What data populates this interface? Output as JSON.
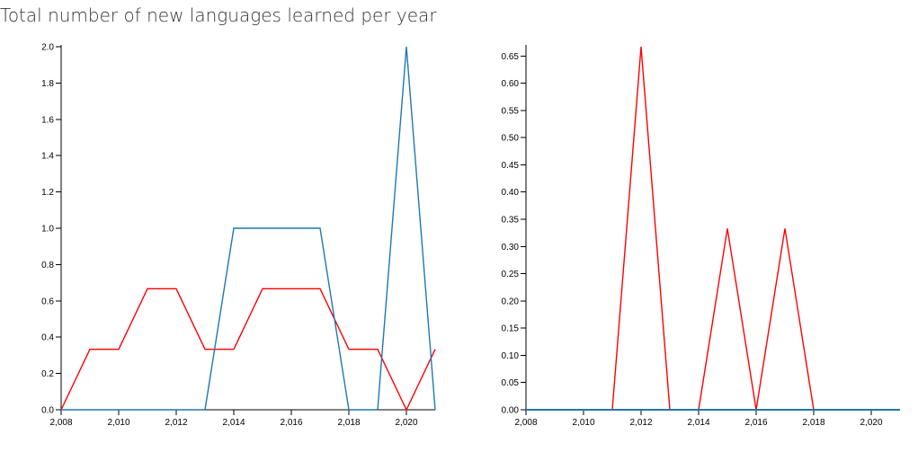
{
  "page": {
    "title": "Total number of new languages learned per year"
  },
  "colors": {
    "red_series": "#ff0000",
    "blue_series": "#1f77b4"
  },
  "chart_data": [
    {
      "type": "line",
      "title": "",
      "xlabel": "",
      "ylabel": "",
      "xlim": [
        2008,
        2021
      ],
      "ylim": [
        0,
        2.0
      ],
      "x_ticks": [
        "2,008",
        "2,010",
        "2,012",
        "2,014",
        "2,016",
        "2,018",
        "2,020"
      ],
      "y_ticks": [
        "0.0",
        "0.2",
        "0.4",
        "0.6",
        "0.8",
        "1.0",
        "1.2",
        "1.4",
        "1.6",
        "1.8",
        "2.0"
      ],
      "grid": false,
      "x": [
        2008,
        2009,
        2010,
        2011,
        2012,
        2013,
        2014,
        2015,
        2016,
        2017,
        2018,
        2019,
        2020,
        2021
      ],
      "series": [
        {
          "color": "#ff0000",
          "values": [
            0,
            0.333,
            0.333,
            0.667,
            0.667,
            0.333,
            0.333,
            0.667,
            0.667,
            0.667,
            0.333,
            0.333,
            0,
            0.333
          ]
        },
        {
          "color": "#1f77b4",
          "values": [
            0,
            0,
            0,
            0,
            0,
            0,
            1,
            1,
            1,
            1,
            0,
            0,
            2,
            0
          ]
        }
      ]
    },
    {
      "type": "line",
      "title": "",
      "xlabel": "",
      "ylabel": "",
      "xlim": [
        2008,
        2021
      ],
      "ylim": [
        0,
        0.667
      ],
      "x_ticks": [
        "2,008",
        "2,010",
        "2,012",
        "2,014",
        "2,016",
        "2,018",
        "2,020"
      ],
      "y_ticks": [
        "0.00",
        "0.05",
        "0.10",
        "0.15",
        "0.20",
        "0.25",
        "0.30",
        "0.35",
        "0.40",
        "0.45",
        "0.50",
        "0.55",
        "0.60",
        "0.65"
      ],
      "grid": false,
      "x": [
        2008,
        2009,
        2010,
        2011,
        2012,
        2013,
        2014,
        2015,
        2016,
        2017,
        2018,
        2019,
        2020,
        2021
      ],
      "series": [
        {
          "color": "#ff0000",
          "values": [
            0,
            0,
            0,
            0,
            0.667,
            0,
            0,
            0.333,
            0,
            0.333,
            0,
            0,
            0,
            0
          ]
        },
        {
          "color": "#1f77b4",
          "values": [
            0,
            0,
            0,
            0,
            0,
            0,
            0,
            0,
            0,
            0,
            0,
            0,
            0,
            0
          ]
        }
      ]
    }
  ]
}
